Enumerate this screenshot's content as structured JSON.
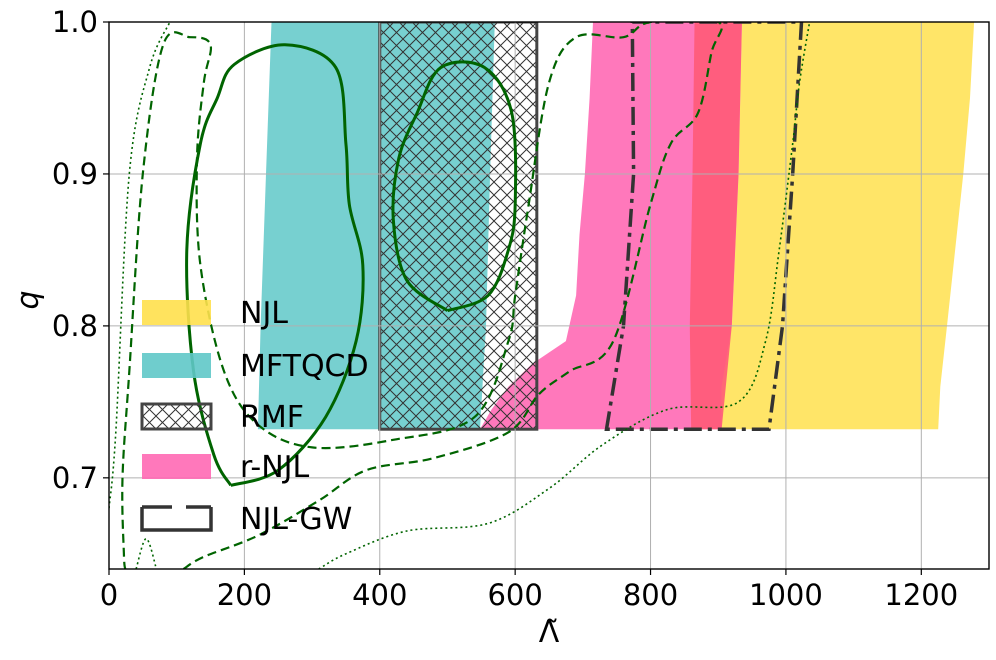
{
  "chart_data": {
    "type": "area",
    "xlabel": "Λ̃",
    "ylabel": "q",
    "xlim": [
      0,
      1300
    ],
    "ylim": [
      0.64,
      1.0
    ],
    "x_ticks": [
      0,
      200,
      400,
      600,
      800,
      1000,
      1200
    ],
    "y_ticks": [
      0.7,
      0.8,
      0.9,
      1.0
    ],
    "x_tick_labels": [
      "0",
      "200",
      "400",
      "600",
      "800",
      "1000",
      "1200"
    ],
    "y_tick_labels": [
      "0.7",
      "0.8",
      "0.9",
      "1.0"
    ],
    "grid": true,
    "legend_position": "left",
    "legend": [
      "NJL",
      "MFTQCD",
      "RMF",
      "r-NJL",
      "NJL-GW"
    ],
    "colors": {
      "NJL": "#ffe04d",
      "MFTQCD": "#5fc8c8",
      "RMF_edge": "#444444",
      "r-NJL": "#ff69b4",
      "NJL-GW_edge": "#333333",
      "contour": "#006400"
    },
    "bands": [
      {
        "name": "NJL",
        "style": "fill",
        "q_range": [
          0.732,
          1.0
        ],
        "left": [
          [
            0.732,
            905
          ],
          [
            0.76,
            905
          ],
          [
            0.8,
            920
          ],
          [
            0.9,
            930
          ],
          [
            1.0,
            935
          ]
        ],
        "right": [
          [
            0.732,
            1225
          ],
          [
            0.76,
            1228
          ],
          [
            0.8,
            1238
          ],
          [
            0.9,
            1262
          ],
          [
            0.95,
            1272
          ],
          [
            1.0,
            1278
          ]
        ]
      },
      {
        "name": "r-NJL",
        "style": "fill",
        "q_range": [
          0.732,
          1.0
        ],
        "left": [
          [
            0.732,
            548
          ],
          [
            0.745,
            565
          ],
          [
            0.76,
            590
          ],
          [
            0.775,
            625
          ],
          [
            0.79,
            675
          ],
          [
            0.82,
            690
          ],
          [
            0.86,
            695
          ],
          [
            0.9,
            703
          ],
          [
            0.95,
            710
          ],
          [
            1.0,
            715
          ]
        ],
        "right": [
          [
            0.732,
            905
          ],
          [
            0.76,
            905
          ],
          [
            0.8,
            920
          ],
          [
            0.9,
            930
          ],
          [
            1.0,
            935
          ]
        ]
      },
      {
        "name": "MFTQCD",
        "style": "fill",
        "q_range": [
          0.732,
          1.0
        ],
        "left": [
          [
            0.732,
            220
          ],
          [
            0.8,
            224
          ],
          [
            0.9,
            232
          ],
          [
            1.0,
            240
          ]
        ],
        "right": [
          [
            0.732,
            548
          ],
          [
            0.8,
            557
          ],
          [
            0.9,
            563
          ],
          [
            1.0,
            570
          ]
        ]
      },
      {
        "name": "RMF",
        "style": "hatch",
        "x_range": [
          400,
          632
        ],
        "q_range": [
          0.732,
          1.0
        ]
      },
      {
        "name": "NJL-GW",
        "style": "dashdot",
        "outline": [
          [
            735,
            0.732
          ],
          [
            760,
            0.8
          ],
          [
            775,
            0.9
          ],
          [
            773,
            1.0
          ],
          [
            1023,
            1.0
          ],
          [
            1010,
            0.9
          ],
          [
            995,
            0.8
          ],
          [
            975,
            0.732
          ]
        ]
      }
    ],
    "contours": [
      {
        "level": "inner",
        "style": "solid",
        "points": [
          [
            180,
            0.695
          ],
          [
            155,
            0.715
          ],
          [
            125,
            0.77
          ],
          [
            115,
            0.85
          ],
          [
            135,
            0.92
          ],
          [
            160,
            0.95
          ],
          [
            185,
            0.972
          ],
          [
            260,
            0.985
          ],
          [
            335,
            0.97
          ],
          [
            350,
            0.92
          ],
          [
            355,
            0.88
          ],
          [
            375,
            0.84
          ],
          [
            365,
            0.79
          ],
          [
            320,
            0.74
          ],
          [
            250,
            0.705
          ],
          [
            180,
            0.695
          ]
        ]
      },
      {
        "level": "inner",
        "style": "solid",
        "points": [
          [
            500,
            0.81
          ],
          [
            440,
            0.83
          ],
          [
            420,
            0.87
          ],
          [
            428,
            0.91
          ],
          [
            455,
            0.94
          ],
          [
            490,
            0.97
          ],
          [
            555,
            0.97
          ],
          [
            595,
            0.94
          ],
          [
            600,
            0.88
          ],
          [
            590,
            0.85
          ],
          [
            560,
            0.82
          ],
          [
            500,
            0.81
          ]
        ]
      },
      {
        "level": "middle",
        "style": "dashed",
        "points": [
          [
            110,
            0.64
          ],
          [
            140,
            0.648
          ],
          [
            220,
            0.662
          ],
          [
            310,
            0.685
          ],
          [
            380,
            0.705
          ],
          [
            480,
            0.713
          ],
          [
            590,
            0.73
          ],
          [
            635,
            0.755
          ],
          [
            680,
            0.77
          ],
          [
            745,
            0.79
          ],
          [
            800,
            0.88
          ],
          [
            830,
            0.92
          ],
          [
            870,
            0.94
          ],
          [
            890,
            0.98
          ],
          [
            900,
            1.0
          ],
          [
            800,
            1.0
          ],
          [
            760,
            0.99
          ],
          [
            690,
            0.99
          ],
          [
            650,
            0.96
          ],
          [
            620,
            0.88
          ],
          [
            600,
            0.82
          ],
          [
            590,
            0.79
          ],
          [
            540,
            0.74
          ],
          [
            420,
            0.725
          ],
          [
            300,
            0.72
          ],
          [
            220,
            0.735
          ],
          [
            170,
            0.77
          ],
          [
            135,
            0.84
          ],
          [
            130,
            0.91
          ],
          [
            140,
            0.96
          ],
          [
            150,
            0.985
          ],
          [
            120,
            0.99
          ],
          [
            80,
            0.985
          ],
          [
            50,
            0.9
          ],
          [
            30,
            0.77
          ],
          [
            20,
            0.7
          ],
          [
            22,
            0.65
          ],
          [
            24,
            0.64
          ]
        ]
      },
      {
        "level": "outer",
        "style": "dotted",
        "points": [
          [
            0,
            0.68
          ],
          [
            10,
            0.73
          ],
          [
            30,
            0.9
          ],
          [
            60,
            0.97
          ],
          [
            90,
            1.0
          ]
        ]
      },
      {
        "level": "outer",
        "style": "dotted",
        "points": [
          [
            40,
            0.64
          ],
          [
            55,
            0.66
          ],
          [
            70,
            0.64
          ]
        ]
      },
      {
        "level": "outer",
        "style": "dotted",
        "points": [
          [
            310,
            0.64
          ],
          [
            350,
            0.65
          ],
          [
            440,
            0.665
          ],
          [
            560,
            0.67
          ],
          [
            650,
            0.693
          ],
          [
            730,
            0.722
          ],
          [
            825,
            0.745
          ],
          [
            930,
            0.75
          ],
          [
            970,
            0.79
          ],
          [
            990,
            0.85
          ],
          [
            1010,
            0.92
          ],
          [
            1020,
            0.96
          ],
          [
            1035,
            1.0
          ]
        ]
      }
    ]
  }
}
